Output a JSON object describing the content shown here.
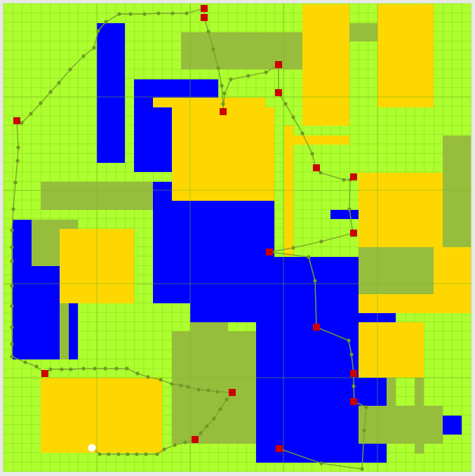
{
  "colors": {
    "ground": "#adff2f",
    "grid_fine": "#8fdc1f",
    "grid_major": "#6fb71a",
    "olive": "#96bd3c",
    "yellow": "#ffd700",
    "blue": "#0000ff",
    "path": "#7aa52a",
    "path_point": "#6f9a25",
    "waypoint": "#cc0000",
    "start": "#ffffff"
  },
  "legend": []
}
